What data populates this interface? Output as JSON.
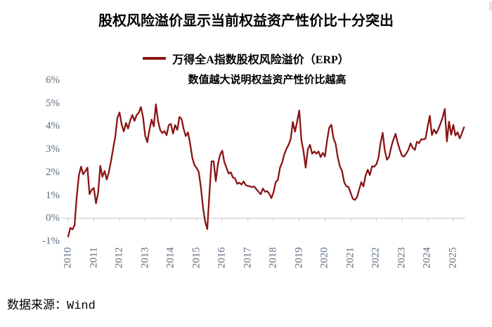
{
  "header": {
    "title": "股权风险溢价显示当前权益资产性价比十分突出"
  },
  "legend": {
    "label": "万得全A指数股权风险溢价（ERP）",
    "color": "#8b1414"
  },
  "subtitle": "数值越大说明权益资产性价比越高",
  "footer": {
    "source_label": "数据来源：Wind"
  },
  "colors": {
    "line": "#8b1414",
    "axis": "#c9cdd2",
    "tick_label": "#5d6d7e",
    "title_text": "#000000",
    "background": "#ffffff"
  },
  "chart_data": {
    "type": "line",
    "title": "股权风险溢价显示当前权益资产性价比十分突出",
    "subtitle": "数值越大说明权益资产性价比越高",
    "xlabel": "",
    "ylabel": "",
    "unit": "%",
    "grid": false,
    "legend_position": "top-center",
    "axis_line_at_value": 0,
    "ylim": [
      -1,
      6
    ],
    "xlim": [
      2010,
      2025.6
    ],
    "y_tick_values": [
      6,
      5,
      4,
      3,
      2,
      1,
      0,
      -1
    ],
    "y_tick_labels": [
      "6%",
      "5%",
      "4%",
      "3%",
      "2%",
      "1%",
      "0%",
      "-1%"
    ],
    "x_tick_years": [
      2010,
      2011,
      2012,
      2013,
      2014,
      2015,
      2016,
      2017,
      2018,
      2019,
      2020,
      2021,
      2022,
      2023,
      2024,
      2025
    ],
    "x_tick_labels": [
      "2010",
      "2011",
      "2012",
      "2013",
      "2014",
      "2015",
      "2016",
      "2017",
      "2018",
      "2019",
      "2020",
      "2021",
      "2022",
      "2023",
      "2024",
      "2025"
    ],
    "series": [
      {
        "name": "万得全A指数股权风险溢价（ERP）",
        "color": "#8b1414",
        "x_start_year": 2010,
        "x_step_months": 1,
        "values": [
          -0.8,
          -0.45,
          -0.4,
          -0.28,
          0.95,
          1.95,
          2.25,
          1.9,
          2.1,
          2.15,
          1.0,
          1.25,
          1.22,
          0.6,
          1.1,
          2.2,
          1.8,
          2.1,
          1.65,
          2.05,
          2.55,
          3.0,
          3.6,
          4.4,
          4.55,
          4.1,
          3.75,
          4.05,
          3.9,
          4.2,
          4.4,
          4.25,
          4.45,
          4.55,
          4.9,
          4.4,
          3.6,
          3.4,
          3.85,
          4.3,
          4.05,
          4.9,
          4.2,
          3.85,
          3.6,
          3.75,
          3.6,
          3.95,
          4.1,
          3.7,
          4.0,
          3.9,
          4.45,
          4.3,
          3.95,
          3.6,
          3.7,
          3.3,
          2.6,
          2.25,
          2.2,
          1.95,
          1.3,
          0.5,
          -0.2,
          -0.5,
          1.1,
          2.45,
          2.5,
          1.7,
          2.35,
          2.8,
          3.0,
          2.4,
          2.2,
          1.95,
          1.9,
          1.75,
          1.7,
          1.4,
          1.55,
          1.45,
          1.55,
          1.5,
          1.43,
          1.38,
          1.45,
          1.4,
          1.25,
          1.22,
          1.02,
          1.25,
          1.17,
          1.1,
          1.0,
          0.88,
          1.05,
          1.55,
          1.7,
          2.15,
          2.45,
          2.85,
          3.0,
          3.25,
          3.5,
          4.15,
          3.8,
          4.2,
          4.6,
          3.4,
          2.85,
          2.1,
          3.0,
          3.15,
          2.75,
          2.95,
          2.8,
          2.9,
          2.75,
          2.85,
          2.7,
          3.45,
          3.9,
          4.05,
          3.5,
          3.15,
          2.6,
          2.25,
          1.95,
          1.55,
          1.4,
          1.3,
          1.15,
          0.9,
          0.78,
          1.0,
          1.3,
          1.55,
          1.45,
          1.85,
          2.05,
          1.9,
          2.2,
          2.15,
          2.35,
          2.55,
          3.2,
          3.75,
          2.9,
          2.55,
          2.75,
          3.1,
          3.45,
          3.75,
          3.25,
          3.0,
          2.75,
          2.6,
          2.8,
          2.95,
          3.15,
          3.05,
          2.95,
          3.25,
          3.3,
          3.45,
          3.4,
          3.55,
          4.0,
          4.45,
          3.7,
          3.85,
          3.65,
          3.9,
          4.05,
          4.3,
          4.75,
          3.25,
          4.15,
          3.65,
          4.0,
          3.6,
          3.8,
          3.45,
          3.75,
          3.95
        ]
      }
    ]
  }
}
